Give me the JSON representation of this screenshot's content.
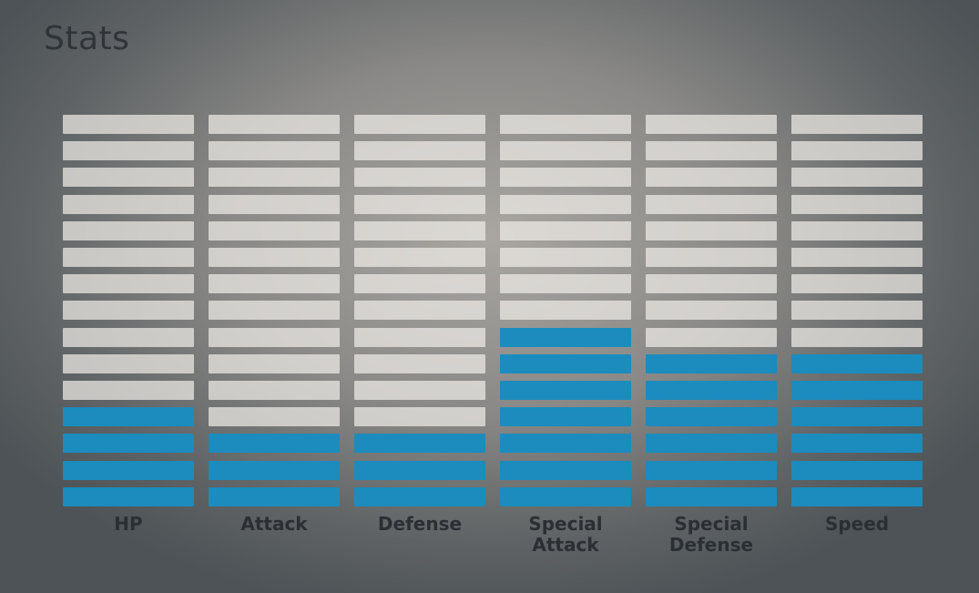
{
  "page": {
    "title": "Stats"
  },
  "chart_data": {
    "type": "bar",
    "title": "Stats",
    "categories": [
      "HP",
      "Attack",
      "Defense",
      "Special\nAttack",
      "Special\nDefense",
      "Speed"
    ],
    "values": [
      4,
      3,
      3,
      7,
      6,
      6
    ],
    "ylim": [
      0,
      15
    ],
    "segments_total": 15,
    "colors": {
      "filled": "#1b8cbd",
      "empty": "#e6e4e0"
    }
  }
}
